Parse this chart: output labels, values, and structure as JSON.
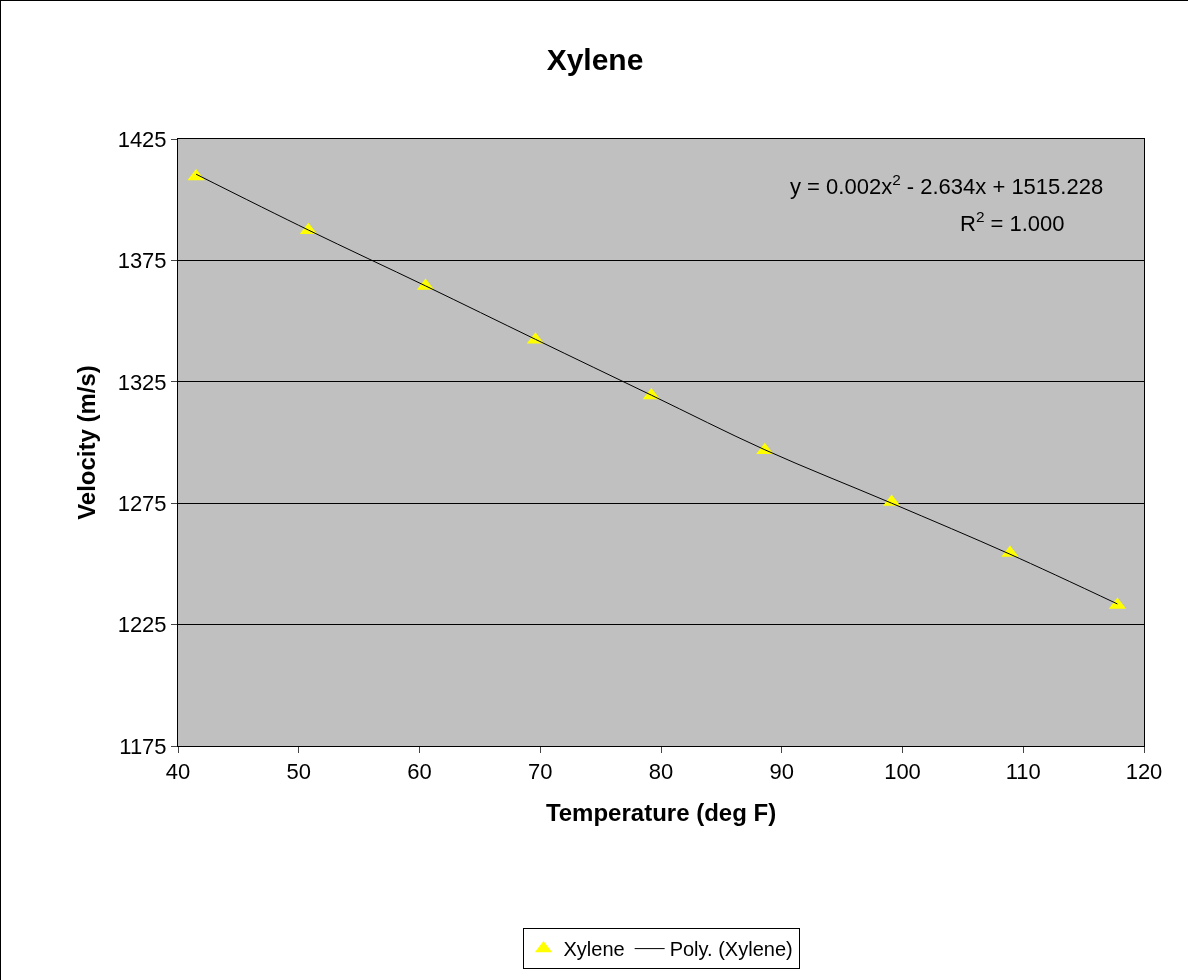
{
  "chart_data": {
    "type": "scatter",
    "title": "Xylene",
    "xlabel": "Temperature (deg F)",
    "ylabel": "Velocity (m/s)",
    "xlim": [
      40,
      120
    ],
    "xticks": [
      40,
      50,
      60,
      70,
      80,
      90,
      100,
      110,
      120
    ],
    "ylim": [
      1175,
      1425
    ],
    "yticks": [
      1175,
      1225,
      1275,
      1325,
      1375,
      1425
    ],
    "grid": "y",
    "legend": "bottom",
    "annotations": [
      "y = 0.002x$^{2}$ - 2.634x + 1515.228",
      "R$^{2}$ = 1.000"
    ],
    "series": [
      {
        "name": "Xylene",
        "marker": "triangle",
        "color": "#ffff00",
        "x": [
          41.5,
          50.8,
          60.5,
          69.6,
          79.2,
          88.6,
          99.1,
          108.9,
          117.8
        ],
        "values": [
          1409.6,
          1387.4,
          1364.5,
          1342.3,
          1319.4,
          1296.8,
          1275.5,
          1254.5,
          1233.1
        ]
      },
      {
        "name": "Poly. (Xylene)",
        "type": "line",
        "marker": "none",
        "line_style": "solid",
        "color": "#000000",
        "x": [
          41.5,
          50.8,
          60.5,
          69.6,
          79.2,
          88.6,
          99.1,
          108.9,
          117.8
        ],
        "values": [
          1410.5,
          1387.5,
          1364.5,
          1342.5,
          1319.5,
          1297,
          1275,
          1254,
          1233.5
        ]
      }
    ]
  }
}
